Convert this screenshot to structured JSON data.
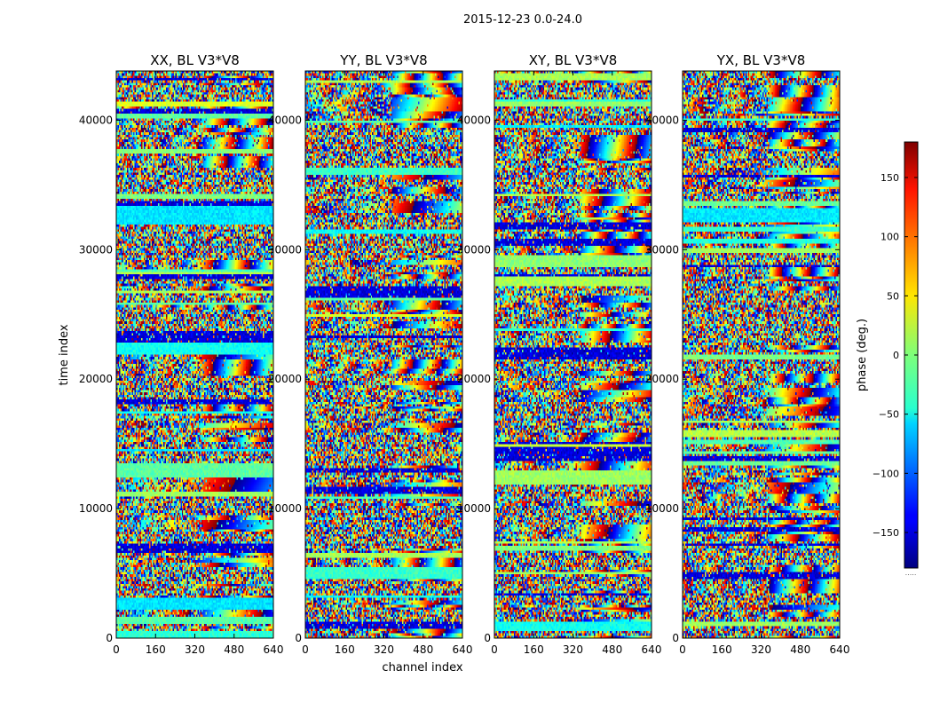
{
  "figure": {
    "suptitle": "2015-12-23 0.0-24.0"
  },
  "chart_data": {
    "type": "heatmap",
    "xlabel": "channel index",
    "ylabel": "time index",
    "xlim": [
      0,
      640
    ],
    "ylim": [
      0,
      43800
    ],
    "x_ticks": [
      0,
      160,
      320,
      480,
      640
    ],
    "y_ticks": [
      0,
      10000,
      20000,
      30000,
      40000
    ],
    "panels": [
      {
        "title": "XX, BL V3*V8",
        "id": "xx"
      },
      {
        "title": "YY, BL V3*V8",
        "id": "yy"
      },
      {
        "title": "XY, BL V3*V8",
        "id": "xy"
      },
      {
        "title": "YX, BL V3*V8",
        "id": "yx"
      }
    ],
    "colorbar": {
      "label": "phase (deg.)",
      "range": [
        -180,
        180
      ],
      "ticks": [
        150,
        100,
        50,
        0,
        -50,
        -100,
        -150
      ],
      "tick_labels": [
        "150",
        "100",
        "50",
        "0",
        "−50",
        "−100",
        "−150"
      ],
      "colormap": "jet",
      "offset_label": "....."
    }
  }
}
